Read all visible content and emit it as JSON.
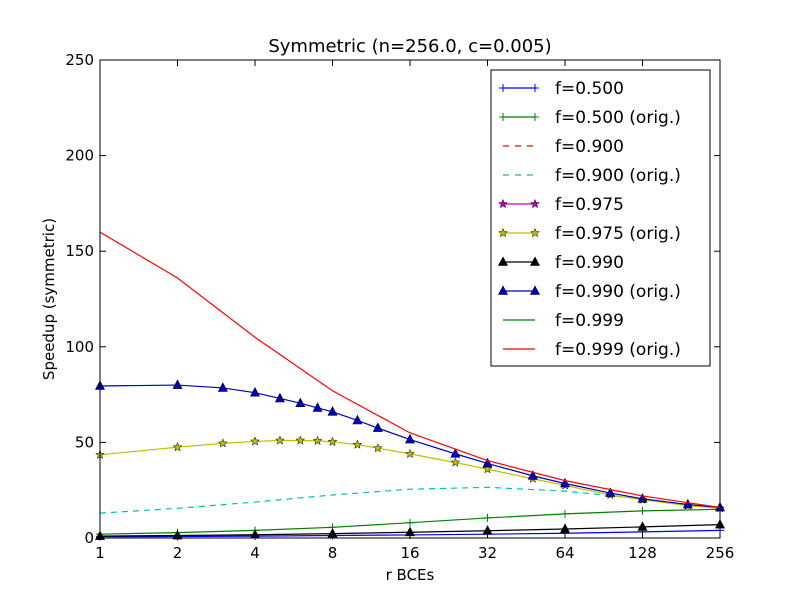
{
  "chart_data": {
    "type": "line",
    "title": "Symmetric (n=256.0, c=0.005)",
    "xlabel": "r BCEs",
    "ylabel": "Speedup (symmetric)",
    "xscale": "log2",
    "xlim": [
      1,
      256
    ],
    "ylim": [
      0,
      250
    ],
    "xticks": [
      1,
      2,
      4,
      8,
      16,
      32,
      64,
      128,
      256
    ],
    "yticks": [
      0,
      50,
      100,
      150,
      200,
      250
    ],
    "legend_position": "top-right",
    "grid": false,
    "series": [
      {
        "name": "f=0.500",
        "color": "#0000ff",
        "style": "solid",
        "marker": "plus",
        "x": [
          1,
          2,
          4,
          8,
          16,
          32,
          64,
          128,
          256
        ],
        "y": [
          0.7,
          0.8,
          1.0,
          1.3,
          1.6,
          2.0,
          2.5,
          3.2,
          4.0
        ]
      },
      {
        "name": "f=0.500 (orig.)",
        "color": "#008000",
        "style": "solid",
        "marker": "plus",
        "x": [
          1,
          2,
          4,
          8,
          16,
          32,
          64,
          128,
          256
        ],
        "y": [
          2.0,
          2.8,
          4.0,
          5.6,
          8.0,
          10.5,
          12.6,
          14.2,
          15.0
        ]
      },
      {
        "name": "f=0.900",
        "color": "#ff0000",
        "style": "dashed",
        "marker": "none",
        "x": [],
        "y": []
      },
      {
        "name": "f=0.900 (orig.)",
        "color": "#00bfbf",
        "style": "dashed",
        "marker": "none",
        "x": [
          1,
          2,
          4,
          8,
          16,
          32,
          64,
          128,
          256
        ],
        "y": [
          13,
          15.5,
          18.8,
          22.5,
          25.5,
          26.5,
          24.5,
          20.5,
          15.5
        ]
      },
      {
        "name": "f=0.975",
        "color": "#bf00bf",
        "style": "solid",
        "marker": "star",
        "x": [],
        "y": []
      },
      {
        "name": "f=0.975 (orig.)",
        "color": "#bfbf00",
        "style": "solid",
        "marker": "star",
        "x": [
          1,
          2,
          3,
          4,
          5,
          6,
          7,
          8,
          10,
          12,
          16,
          24,
          32,
          48,
          64,
          96,
          128,
          192,
          256
        ],
        "y": [
          43.5,
          47.5,
          49.5,
          50.5,
          51,
          51,
          50.8,
          50.3,
          48.8,
          47,
          44,
          39.5,
          36,
          31,
          27.5,
          22.5,
          20,
          17,
          15.5
        ]
      },
      {
        "name": "f=0.990",
        "color": "#000000",
        "style": "solid",
        "marker": "triangle",
        "x": [
          1,
          2,
          4,
          8,
          16,
          32,
          64,
          128,
          256
        ],
        "y": [
          1.0,
          1.3,
          1.7,
          2.3,
          3.0,
          3.8,
          4.7,
          5.8,
          7.0
        ]
      },
      {
        "name": "f=0.990 (orig.)",
        "color": "#0000bf",
        "style": "solid",
        "marker": "triangle",
        "x": [
          1,
          2,
          3,
          4,
          5,
          6,
          7,
          8,
          10,
          12,
          16,
          24,
          32,
          48,
          64,
          96,
          128,
          192,
          256
        ],
        "y": [
          79.5,
          80,
          78.5,
          76,
          73,
          70.5,
          68,
          66,
          61.5,
          57.5,
          51.5,
          44,
          39,
          32.5,
          28.5,
          23.5,
          20.5,
          17.5,
          16
        ]
      },
      {
        "name": "f=0.999",
        "color": "#008000",
        "style": "solid",
        "marker": "none",
        "x": [],
        "y": []
      },
      {
        "name": "f=0.999 (orig.)",
        "color": "#ff0000",
        "style": "solid",
        "marker": "none",
        "x": [
          1,
          2,
          4,
          8,
          16,
          32,
          64,
          128,
          256
        ],
        "y": [
          160,
          136,
          105,
          77,
          55,
          40.5,
          30,
          22,
          16
        ]
      }
    ]
  }
}
